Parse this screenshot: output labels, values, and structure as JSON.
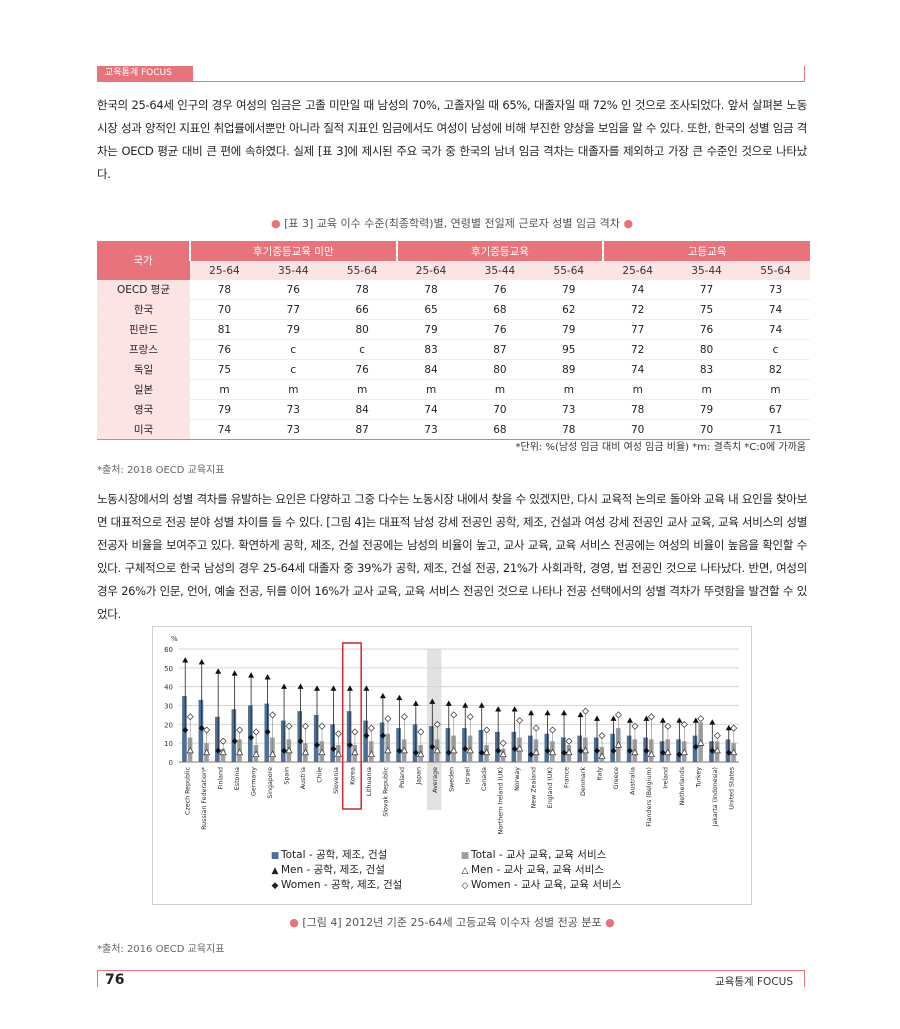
{
  "header": {
    "tab": "교육통계 FOCUS"
  },
  "paragraph1": "한국의 25-64세 인구의 경우 여성의 임금은 고졸 미만일 때 남성의 70%, 고졸자일 때 65%, 대졸자일 때 72% 인 것으로 조사되었다. 앞서 살펴본 노동시장 성과 양적인 지표인 취업률에서뿐만 아니라 질적 지표인 임금에서도 여성이 남성에 비해 부진한 양상을 보임을 알 수 있다. 또한, 한국의 성별 임금 격차는 OECD 평균 대비 큰 편에 속하였다. 실제 [표 3]에 제시된 주요 국가 중 한국의 남녀 임금 격차는 대졸자를 제외하고 가장 큰 수준인 것으로 나타났다.",
  "table": {
    "caption": "[표 3] 교육 이수 수준(최종학력)별, 연령별 전일제 근로자 성별 임금 격차",
    "country_header": "국가",
    "groups": [
      "후기중등교육 미만",
      "후기중등교육",
      "고등교육"
    ],
    "ages": [
      "25-64",
      "35-44",
      "55-64"
    ],
    "rows": [
      {
        "country": "OECD 평균",
        "values": [
          "78",
          "76",
          "78",
          "78",
          "76",
          "79",
          "74",
          "77",
          "73"
        ]
      },
      {
        "country": "한국",
        "values": [
          "70",
          "77",
          "66",
          "65",
          "68",
          "62",
          "72",
          "75",
          "74"
        ]
      },
      {
        "country": "핀란드",
        "values": [
          "81",
          "79",
          "80",
          "79",
          "76",
          "79",
          "77",
          "76",
          "74"
        ]
      },
      {
        "country": "프랑스",
        "values": [
          "76",
          "c",
          "c",
          "83",
          "87",
          "95",
          "72",
          "80",
          "c"
        ]
      },
      {
        "country": "독일",
        "values": [
          "75",
          "c",
          "76",
          "84",
          "80",
          "89",
          "74",
          "83",
          "82"
        ]
      },
      {
        "country": "일본",
        "values": [
          "m",
          "m",
          "m",
          "m",
          "m",
          "m",
          "m",
          "m",
          "m"
        ]
      },
      {
        "country": "영국",
        "values": [
          "79",
          "73",
          "84",
          "74",
          "70",
          "73",
          "78",
          "79",
          "67"
        ]
      },
      {
        "country": "미국",
        "values": [
          "74",
          "73",
          "87",
          "73",
          "68",
          "78",
          "70",
          "70",
          "71"
        ]
      }
    ],
    "note": "*단위: %(남성 임금 대비 여성 임금 비율)  *m: 결측치  *C:0에 가까움",
    "source": "*출처: 2018 OECD 교육지표"
  },
  "paragraph2": "노동시장에서의 성별 격차를 유발하는 요인은 다양하고 그중 다수는 노동시장 내에서 찾을 수 있겠지만, 다시 교육적 논의로 돌아와 교육 내 요인을 찾아보면 대표적으로 전공 분야 성별 차이를 들 수 있다. [그림 4]는 대표적 남성 강세 전공인 공학, 제조, 건설과 여성 강세 전공인 교사 교육, 교육 서비스의 성별 전공자 비율을 보여주고 있다. 확연하게 공학, 제조, 건설 전공에는 남성의 비율이 높고, 교사 교육, 교육 서비스 전공에는 여성의 비율이 높음을 확인할 수 있다. 구체적으로 한국 남성의 경우 25-64세 대졸자 중 39%가 공학, 제조, 건설 전공, 21%가 사회과학, 경영, 법 전공인 것으로 나타났다. 반면, 여성의 경우 26%가 인문, 언어, 예술 전공, 뒤를 이어 16%가 교사 교육, 교육 서비스 전공인 것으로 나타나 전공 선택에서의 성별 격차가 뚜렷함을 발견할 수 있었다.",
  "chart_data": {
    "type": "bar",
    "ylabel": "%",
    "ylim": [
      0,
      60
    ],
    "yticks": [
      0,
      10,
      20,
      30,
      40,
      50,
      60
    ],
    "highlight": "Korea",
    "average_category": "Average",
    "categories": [
      "Czech Republic",
      "Russian Federation*",
      "Finland",
      "Estonia",
      "Germany",
      "Singapore",
      "Spain",
      "Austria",
      "Chile",
      "Slovenia",
      "Korea",
      "Lithuania",
      "Slovak Republic",
      "Poland",
      "Japan",
      "Average",
      "Sweden",
      "Israel",
      "Canada",
      "Northern Ireland (UK)",
      "Norway",
      "New Zealand",
      "England (UK)",
      "France",
      "Denmark",
      "Italy",
      "Greece",
      "Australia",
      "Flanders (Belgium)",
      "Ireland",
      "Netherlands",
      "Turkey",
      "Jakarta (Indonesia)",
      "United States"
    ],
    "series": [
      {
        "name": "Total - 공학, 제조, 건설",
        "marker": "bar",
        "color": "#4f6f96",
        "values": [
          35,
          33,
          24,
          28,
          30,
          31,
          22,
          27,
          25,
          20,
          27,
          22,
          21,
          18,
          20,
          19,
          18,
          18,
          17,
          16,
          16,
          14,
          15,
          13,
          14,
          13,
          15,
          14,
          13,
          11,
          12,
          14,
          11,
          12
        ]
      },
      {
        "name": "Total - 교사 교육, 교육 서비스",
        "marker": "bar",
        "color": "#9e9e9e",
        "values": [
          13,
          10,
          7,
          12,
          9,
          13,
          12,
          10,
          11,
          9,
          9,
          11,
          15,
          12,
          9,
          12,
          14,
          14,
          9,
          7,
          13,
          12,
          11,
          9,
          13,
          8,
          18,
          12,
          12,
          12,
          11,
          21,
          11,
          10
        ]
      },
      {
        "name": "Men - 공학, 제조, 건설",
        "marker": "triangle",
        "color": "#111111",
        "values": [
          54,
          53,
          48,
          47,
          46,
          45,
          40,
          40,
          39,
          39,
          39,
          39,
          35,
          34,
          31,
          32,
          31,
          30,
          30,
          28,
          28,
          26,
          26,
          26,
          25,
          23,
          23,
          22,
          23,
          22,
          22,
          22,
          21,
          18
        ]
      },
      {
        "name": "Men - 교사 교육, 교육 서비스",
        "marker": "triangle-open",
        "color": "#111111",
        "values": [
          6,
          5,
          5,
          5,
          4,
          4,
          6,
          5,
          5,
          4,
          5,
          4,
          6,
          6,
          4,
          6,
          6,
          6,
          5,
          4,
          7,
          5,
          5,
          5,
          6,
          3,
          9,
          5,
          4,
          5,
          5,
          10,
          6,
          5
        ]
      },
      {
        "name": "Women - 공학, 제조, 건설",
        "marker": "diamond",
        "color": "#111111",
        "values": [
          17,
          18,
          6,
          11,
          13,
          16,
          6,
          11,
          9,
          7,
          9,
          14,
          14,
          6,
          5,
          8,
          5,
          7,
          5,
          6,
          7,
          4,
          6,
          5,
          6,
          6,
          6,
          6,
          6,
          5,
          4,
          8,
          6,
          5
        ]
      },
      {
        "name": "Women - 교사 교육, 교육 서비스",
        "marker": "diamond-open",
        "color": "#111111",
        "values": [
          24,
          17,
          11,
          17,
          16,
          25,
          19,
          19,
          19,
          15,
          16,
          18,
          23,
          24,
          16,
          20,
          25,
          24,
          17,
          10,
          22,
          18,
          17,
          11,
          27,
          14,
          25,
          19,
          24,
          19,
          20,
          23,
          14,
          18
        ]
      }
    ]
  },
  "figure": {
    "caption": "[그림 4] 2012년 기준 25-64세 고등교육 이수자 성별 전공 분포",
    "source": "*출처: 2016 OECD 교육지표",
    "legend": [
      {
        "symbol": "■",
        "label": "Total - 공학, 제조, 건설"
      },
      {
        "symbol": "■",
        "label": "Total - 교사 교육, 교육 서비스"
      },
      {
        "symbol": "▲",
        "label": "Men - 공학, 제조, 건설"
      },
      {
        "symbol": "△",
        "label": "Men - 교사 교육, 교육 서비스"
      },
      {
        "symbol": "◆",
        "label": "Women - 공학, 제조, 건설"
      },
      {
        "symbol": "◇",
        "label": "Women - 교사 교육, 교육 서비스"
      }
    ]
  },
  "footer": {
    "page": "76",
    "publication": "교육통계 FOCUS"
  }
}
